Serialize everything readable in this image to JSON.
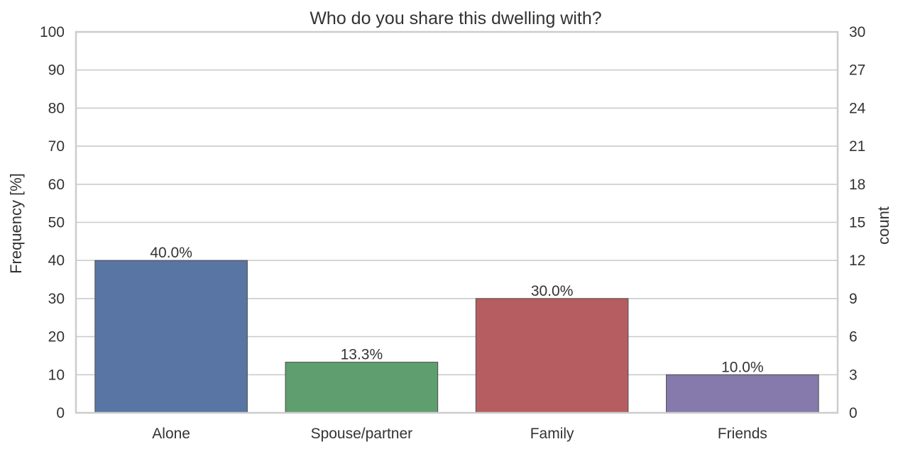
{
  "chart_data": {
    "type": "bar",
    "title": "Who do you share this dwelling with?",
    "categories": [
      "Alone",
      "Spouse/partner",
      "Family",
      "Friends"
    ],
    "values": [
      40.0,
      13.3,
      30.0,
      10.0
    ],
    "bar_labels": [
      "40.0%",
      "13.3%",
      "30.0%",
      "10.0%"
    ],
    "colors": [
      "#5875a4",
      "#5f9e6e",
      "#b55d60",
      "#857aab"
    ],
    "ylabel": "Frequency [%]",
    "ylim": [
      0,
      100
    ],
    "yticks": [
      "0",
      "10",
      "20",
      "30",
      "40",
      "50",
      "60",
      "70",
      "80",
      "90",
      "100"
    ],
    "y2label": "count",
    "y2lim": [
      0,
      30
    ],
    "y2ticks": [
      "0",
      "3",
      "6",
      "9",
      "12",
      "15",
      "18",
      "21",
      "24",
      "27",
      "30"
    ],
    "grid": true,
    "grid_color": "#cccccc",
    "frame_color": "#cccccc"
  }
}
